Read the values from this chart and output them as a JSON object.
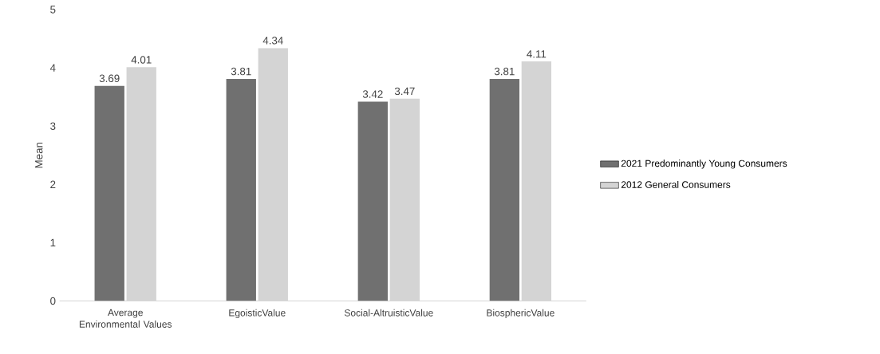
{
  "chart_data": {
    "type": "bar",
    "ylabel": "Mean",
    "categories": [
      "Average Environmental Values",
      "EgoisticValue",
      "Social-AltruisticValue",
      "BiosphericValue"
    ],
    "series": [
      {
        "name": "2021 Predominantly Young Consumers",
        "color": "#707070",
        "values": [
          3.69,
          3.81,
          3.42,
          3.81
        ]
      },
      {
        "name": "2012 General Consumers",
        "color": "#d4d4d4",
        "values": [
          4.01,
          4.34,
          3.47,
          4.11
        ]
      }
    ],
    "ylim": [
      0,
      5
    ],
    "yticks": [
      0,
      1,
      2,
      3,
      4,
      5
    ],
    "grid": false,
    "legend": "right",
    "data_labels": true
  }
}
